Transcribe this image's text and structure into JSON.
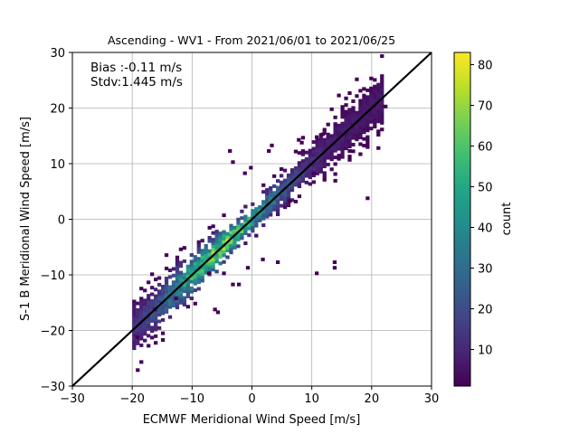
{
  "chart_data": {
    "type": "heatmap",
    "title": "Ascending - WV1 - From 2021/06/01 to 2021/06/25",
    "xlabel": "ECMWF Meridional Wind Speed [m/s]",
    "ylabel": "S-1 B Meridional Wind Speed [m/s]",
    "xlim": [
      -30,
      30
    ],
    "ylim": [
      -30,
      30
    ],
    "xticks": [
      "−30",
      "−20",
      "−10",
      "0",
      "10",
      "20",
      "30"
    ],
    "yticks": [
      "−30",
      "−20",
      "−10",
      "0",
      "10",
      "20",
      "30"
    ],
    "grid": true,
    "annotations": [
      "Bias :-0.11 m/s",
      "Stdv:1.445 m/s"
    ],
    "reference_line": {
      "from": [
        -30,
        -30
      ],
      "to": [
        30,
        30
      ],
      "color": "#000000"
    },
    "colorbar": {
      "label": "count",
      "range": [
        1,
        83
      ],
      "ticks": [
        "10",
        "20",
        "30",
        "40",
        "50",
        "60",
        "70",
        "80"
      ],
      "colormap": "viridis"
    },
    "density": {
      "bin_size": 0.6,
      "diagonal_spread_sd": 1.445,
      "peak_count": 83,
      "peak_location": [
        -5,
        -5
      ],
      "x_extent": [
        -20,
        22
      ]
    },
    "outliers": [
      [
        -19.5,
        -21.5
      ],
      [
        -13,
        -14.5
      ],
      [
        -16.5,
        -16.5
      ],
      [
        -11,
        -16
      ],
      [
        -6,
        -17
      ],
      [
        -6.5,
        -16.5
      ],
      [
        -3.5,
        -12
      ],
      [
        -2.5,
        -12
      ],
      [
        -7.5,
        -10
      ],
      [
        -5,
        -10
      ],
      [
        -1,
        -9
      ],
      [
        1.5,
        -7.5
      ],
      [
        4,
        -8
      ],
      [
        10.5,
        -10
      ],
      [
        13.5,
        -8
      ],
      [
        13.5,
        -9
      ],
      [
        -4,
        12
      ],
      [
        -3.5,
        10
      ],
      [
        -0.5,
        9
      ],
      [
        -1.5,
        8
      ],
      [
        3,
        13
      ],
      [
        2.5,
        12
      ],
      [
        7.5,
        14
      ],
      [
        8,
        13.5
      ],
      [
        10.5,
        14.5
      ],
      [
        11.5,
        15
      ],
      [
        19,
        3.5
      ],
      [
        22,
        20
      ],
      [
        10,
        8
      ],
      [
        16,
        12
      ],
      [
        6,
        3
      ]
    ],
    "colors": {
      "reference_line": "#000000",
      "grid": "#b0b0b0"
    }
  }
}
